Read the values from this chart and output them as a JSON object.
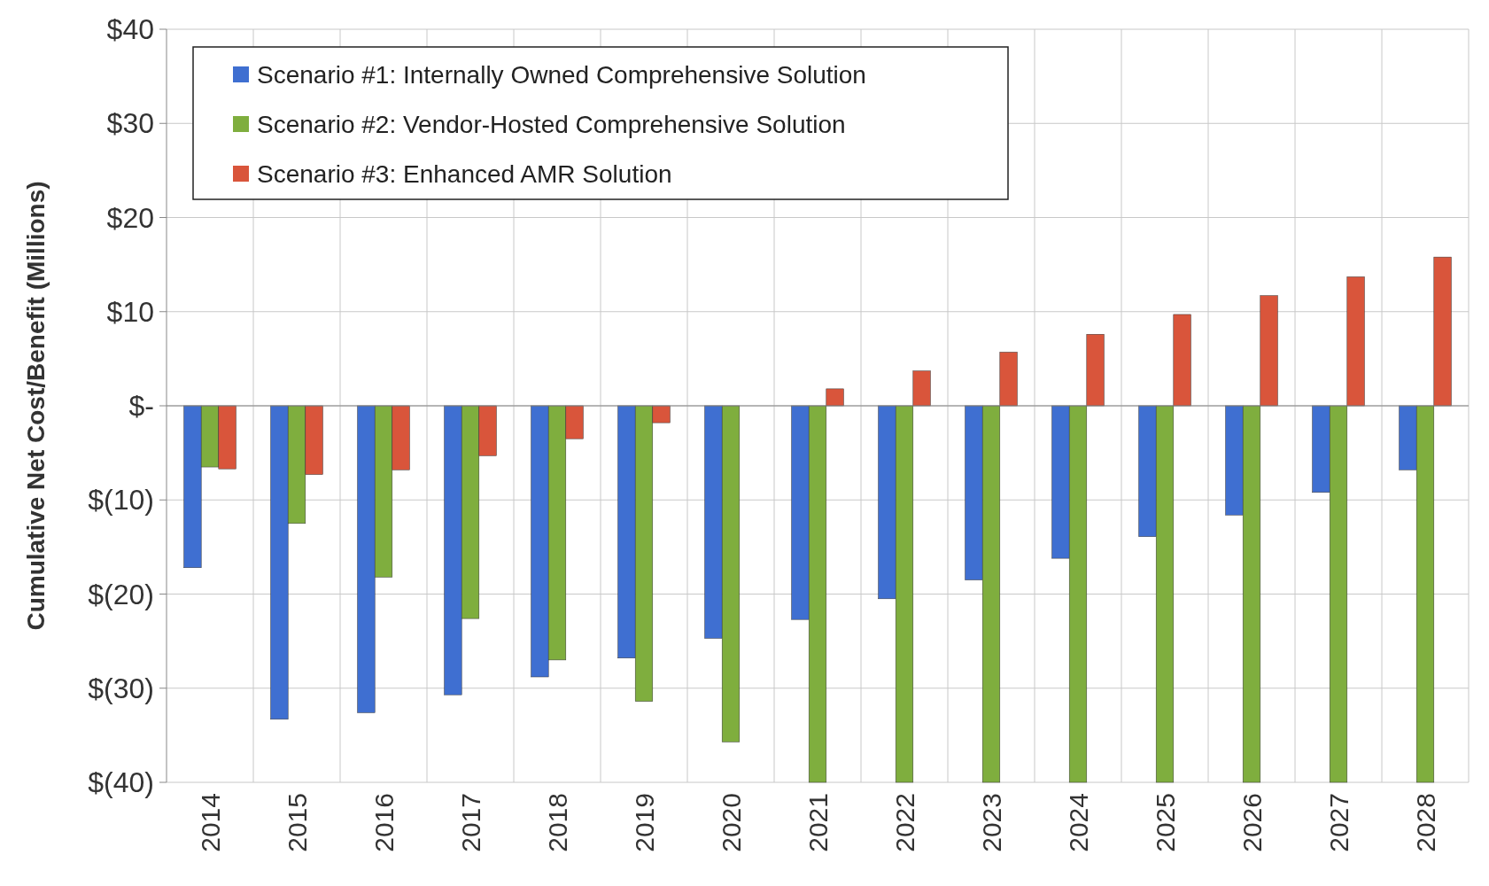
{
  "chart_data": {
    "type": "bar",
    "ylabel": "Cumulative Net Cost/Benefit (Millions)",
    "categories": [
      "2014",
      "2015",
      "2016",
      "2017",
      "2018",
      "2019",
      "2020",
      "2021",
      "2022",
      "2023",
      "2024",
      "2025",
      "2026",
      "2027",
      "2028"
    ],
    "series": [
      {
        "name": "Scenario #1: Internally Owned Comprehensive Solution",
        "color": "#3f6fd1",
        "values": [
          -17.2,
          -33.3,
          -32.6,
          -30.7,
          -28.8,
          -26.8,
          -24.7,
          -22.7,
          -20.5,
          -18.5,
          -16.2,
          -13.9,
          -11.6,
          -9.2,
          -6.8
        ]
      },
      {
        "name": "Scenario #2: Vendor-Hosted Comprehensive Solution",
        "color": "#7fae3e",
        "values": [
          -6.5,
          -12.5,
          -18.2,
          -22.6,
          -27,
          -31.4,
          -35.7,
          -40,
          -40,
          -40,
          -40,
          -40,
          -40,
          -40,
          -40
        ]
      },
      {
        "name": "Scenario #3: Enhanced AMR Solution",
        "color": "#d9553b",
        "values": [
          -6.7,
          -7.3,
          -6.8,
          -5.3,
          -3.5,
          -1.8,
          0,
          1.8,
          3.7,
          5.7,
          7.6,
          9.7,
          11.7,
          13.7,
          15.8
        ]
      }
    ],
    "ylim": [
      -40,
      40
    ],
    "yticks": [
      {
        "value": -40,
        "label": "$(40)"
      },
      {
        "value": -30,
        "label": "$(30)"
      },
      {
        "value": -20,
        "label": "$(20)"
      },
      {
        "value": -10,
        "label": "$(10)"
      },
      {
        "value": 0,
        "label": "$-"
      },
      {
        "value": 10,
        "label": "$10"
      },
      {
        "value": 20,
        "label": "$20"
      },
      {
        "value": 30,
        "label": "$30"
      },
      {
        "value": 40,
        "label": "$40"
      }
    ],
    "grid": true,
    "legend": "top left"
  }
}
